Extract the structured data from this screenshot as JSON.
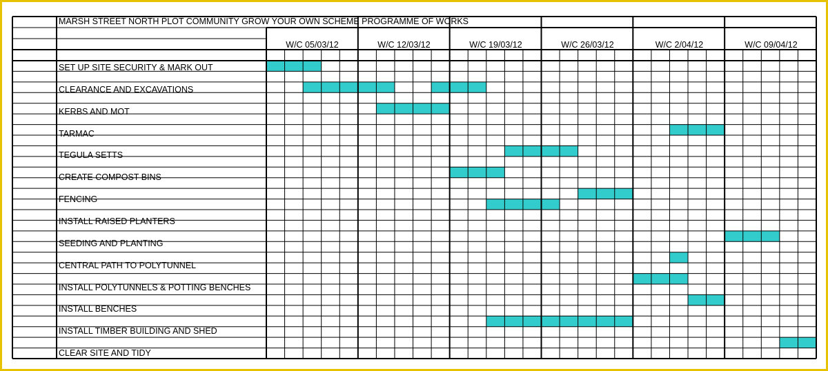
{
  "title": "MARSH STREET NORTH PLOT COMMUNITY GROW YOUR OWN SCHEME PROGRAMME OF WORKS",
  "weeks": [
    "W/C 05/03/12",
    "W/C 12/03/12",
    "W/C 19/03/12",
    "W/C 26/03/12",
    "W/C 2/04/12",
    "W/C 09/04/12"
  ],
  "days_per_week": 5,
  "bar_color": "#33cccc",
  "tasks": [
    {
      "label": "SET UP SITE SECURITY & MARK OUT",
      "bars": [
        {
          "row": 0,
          "days": [
            1,
            2,
            3
          ]
        }
      ]
    },
    {
      "label": "CLEARANCE AND EXCAVATIONS",
      "bars": [
        {
          "row": 0,
          "days": [
            3,
            4,
            5,
            6,
            7,
            10,
            11,
            12
          ]
        }
      ]
    },
    {
      "label": "KERBS AND MOT",
      "bars": [
        {
          "row": 0,
          "days": [
            7,
            8,
            9,
            10
          ]
        }
      ]
    },
    {
      "label": "TARMAC",
      "bars": [
        {
          "row": 0,
          "days": [
            23,
            24,
            25
          ]
        }
      ]
    },
    {
      "label": "TEGULA SETTS",
      "bars": [
        {
          "row": 0,
          "days": [
            14,
            15,
            16,
            17
          ]
        }
      ]
    },
    {
      "label": "CREATE COMPOST BINS",
      "bars": [
        {
          "row": 0,
          "days": [
            11,
            12,
            13
          ]
        }
      ]
    },
    {
      "label": "FENCING",
      "bars": [
        {
          "row": 0,
          "days": [
            18,
            19,
            20
          ]
        },
        {
          "row": 1,
          "days": [
            13,
            14,
            15,
            16
          ]
        }
      ]
    },
    {
      "label": "INSTALL RAISED PLANTERS",
      "bars": []
    },
    {
      "label": "SEEDING AND PLANTING",
      "bars": [
        {
          "row": 0,
          "days": [
            26,
            27,
            28
          ]
        }
      ]
    },
    {
      "label": "CENTRAL PATH TO POLYTUNNEL",
      "bars": [
        {
          "row": 0,
          "days": [
            23
          ]
        }
      ]
    },
    {
      "label": "INSTALL POLYTUNNELS & POTTING BENCHES",
      "bars": [
        {
          "row": 0,
          "days": [
            21,
            22,
            23
          ]
        }
      ]
    },
    {
      "label": "INSTALL BENCHES",
      "bars": [
        {
          "row": 0,
          "days": [
            24,
            25
          ]
        }
      ]
    },
    {
      "label": "INSTALL TIMBER BUILDING AND SHED",
      "bars": [
        {
          "row": 0,
          "days": [
            13,
            14,
            15,
            16,
            17,
            18,
            19,
            20
          ]
        }
      ]
    },
    {
      "label": "CLEAR SITE AND TIDY",
      "bars": [
        {
          "row": 0,
          "days": [
            29,
            30
          ]
        }
      ]
    }
  ]
}
